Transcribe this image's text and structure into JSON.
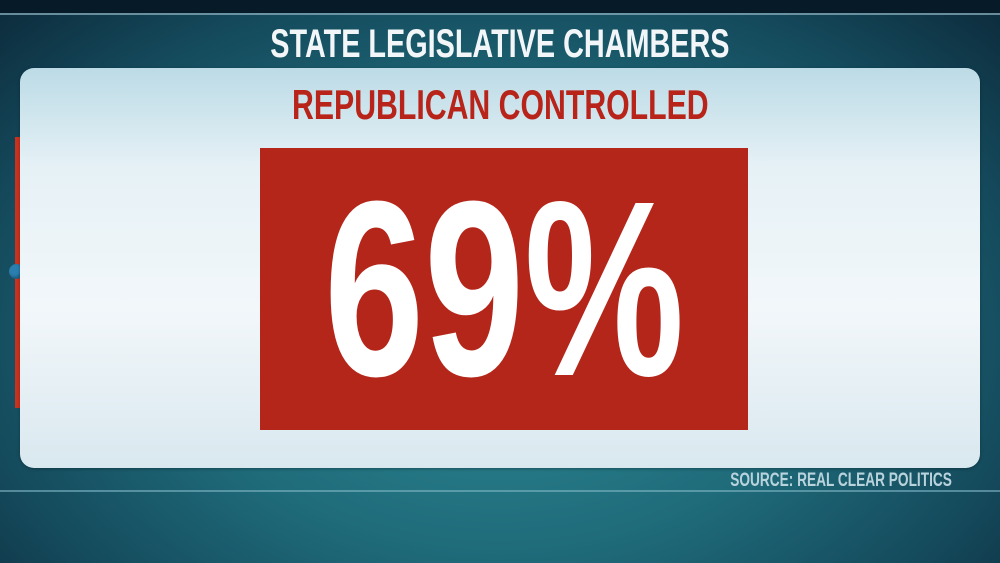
{
  "header": {
    "title": "STATE LEGISLATIVE CHAMBERS"
  },
  "panel": {
    "subtitle": "REPUBLICAN CONTROLLED",
    "value": "69%"
  },
  "footer": {
    "source": "SOURCE: REAL CLEAR POLITICS"
  },
  "colors": {
    "accent_red": "#b5261a",
    "background_teal": "#1f6b7a",
    "panel": "#eef5f8"
  }
}
